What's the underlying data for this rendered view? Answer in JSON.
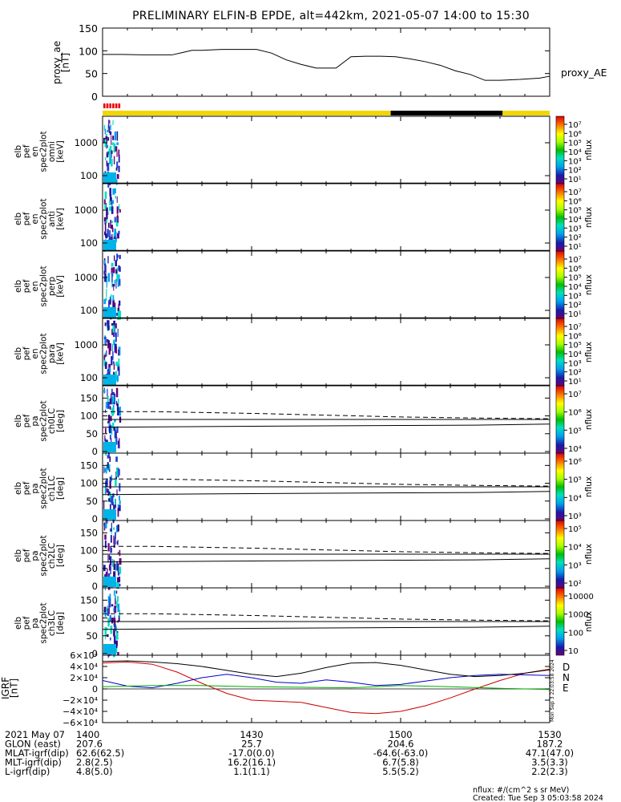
{
  "title": "PRELIMINARY ELFIN-B EPDE, alt=442km, 2021-05-07 14:00 to 15:30",
  "ae_panel": {
    "ylabel_lines": [
      "proxy_ae",
      "[nT]"
    ],
    "yticks": [
      "150",
      "100",
      "50",
      "0"
    ],
    "ylim": [
      0,
      150
    ],
    "legend": "proxy_AE"
  },
  "chart_data": [
    {
      "type": "line",
      "name": "proxy_ae",
      "ylabel": "proxy_ae [nT]",
      "ylim": [
        0,
        150
      ],
      "xlim_min": [
        0,
        90
      ],
      "x": [
        0,
        4,
        8,
        11,
        14,
        16,
        18,
        20,
        24,
        28,
        31,
        34,
        37,
        40,
        43,
        45,
        47,
        50,
        53,
        56,
        59,
        62,
        65,
        68,
        71,
        74,
        77,
        80,
        84,
        88,
        90
      ],
      "y": [
        92,
        92,
        91,
        91,
        91,
        96,
        101,
        101,
        103,
        103,
        103,
        95,
        80,
        70,
        62,
        62,
        62,
        87,
        88,
        88,
        87,
        82,
        76,
        68,
        56,
        48,
        35,
        35,
        37,
        40,
        44
      ]
    },
    {
      "type": "line",
      "name": "IGRF",
      "ylabel": "IGRF [nT]",
      "ylim": [
        -60000,
        60000
      ],
      "xlim_min": [
        0,
        90
      ],
      "series": [
        {
          "name": "D",
          "color": "#cc0000",
          "x": [
            0,
            5,
            10,
            15,
            20,
            25,
            30,
            35,
            40,
            45,
            50,
            55,
            60,
            65,
            70,
            75,
            80,
            85,
            90
          ],
          "values": [
            46000,
            48000,
            44000,
            30000,
            10000,
            -8000,
            -20000,
            -22000,
            -24000,
            -33000,
            -42000,
            -44000,
            -40000,
            -30000,
            -16000,
            0,
            15000,
            28000,
            34000
          ]
        },
        {
          "name": "N",
          "color": "#0000cc",
          "x": [
            0,
            5,
            10,
            15,
            20,
            25,
            30,
            35,
            40,
            45,
            50,
            55,
            60,
            65,
            70,
            75,
            80,
            85,
            90
          ],
          "values": [
            15000,
            5000,
            2000,
            10000,
            20000,
            26000,
            20000,
            12000,
            10000,
            16000,
            12000,
            6000,
            8000,
            14000,
            20000,
            24000,
            26000,
            25000,
            24000
          ]
        },
        {
          "name": "E",
          "color": "#00aa00",
          "x": [
            0,
            10,
            20,
            30,
            40,
            50,
            55,
            60,
            70,
            80,
            90
          ],
          "values": [
            4000,
            6000,
            6000,
            4000,
            3000,
            2000,
            4000,
            6000,
            4000,
            1000,
            -1000
          ]
        },
        {
          "name": "total",
          "color": "#000000",
          "x": [
            0,
            5,
            10,
            15,
            20,
            25,
            30,
            35,
            40,
            45,
            50,
            55,
            60,
            65,
            70,
            75,
            80,
            85,
            90
          ],
          "values": [
            49000,
            50000,
            48000,
            45000,
            40000,
            33000,
            26000,
            22000,
            28000,
            38000,
            46000,
            47000,
            42000,
            34000,
            26000,
            22000,
            24000,
            28000,
            35000
          ]
        }
      ]
    }
  ],
  "spec_panels": [
    {
      "id": "omni",
      "labels": [
        "elb",
        "pef",
        "en",
        "spec2plot",
        "omni",
        "[keV]"
      ],
      "yticks": [
        "1000",
        "100"
      ],
      "cbar_labels": [
        "10⁷",
        "10⁶",
        "10⁵",
        "10⁴",
        "10³",
        "10²",
        "10¹"
      ],
      "cbar_unit": "nflux"
    },
    {
      "id": "anti",
      "labels": [
        "elb",
        "pef",
        "en",
        "spec2plot",
        "anti",
        "[keV]"
      ],
      "yticks": [
        "1000",
        "100"
      ],
      "cbar_labels": [
        "10⁷",
        "10⁶",
        "10⁵",
        "10⁴",
        "10³",
        "10²",
        "10¹"
      ],
      "cbar_unit": "nflux"
    },
    {
      "id": "perp",
      "labels": [
        "elb",
        "pef",
        "en",
        "spec2plot",
        "perp",
        "[keV]"
      ],
      "yticks": [
        "1000",
        "100"
      ],
      "cbar_labels": [
        "10⁷",
        "10⁶",
        "10⁵",
        "10⁴",
        "10³",
        "10²",
        "10¹"
      ],
      "cbar_unit": "nflux"
    },
    {
      "id": "para",
      "labels": [
        "elb",
        "pef",
        "en",
        "spec2plot",
        "para",
        "[keV]"
      ],
      "yticks": [
        "1000",
        "100"
      ],
      "cbar_labels": [
        "10⁷",
        "10⁶",
        "10⁵",
        "10⁴",
        "10³",
        "10²",
        "10¹"
      ],
      "cbar_unit": "nflux"
    }
  ],
  "pa_panels": [
    {
      "id": "ch0LC",
      "labels": [
        "elb",
        "pef",
        "pa",
        "spec2plot",
        "ch0LC",
        "[deg]"
      ],
      "yticks": [
        "150",
        "100",
        "50",
        "0"
      ],
      "cbar_labels": [
        "10⁷",
        "10⁶",
        "10⁵",
        "10⁴"
      ],
      "cbar_unit": "nflux"
    },
    {
      "id": "ch1LC",
      "labels": [
        "elb",
        "pef",
        "pa",
        "spec2plot",
        "ch1LC",
        "[deg]"
      ],
      "yticks": [
        "150",
        "100",
        "50",
        "0"
      ],
      "cbar_labels": [
        "10⁶",
        "10⁵",
        "10⁴",
        "10³"
      ],
      "cbar_unit": "nflux"
    },
    {
      "id": "ch2LC",
      "labels": [
        "elb",
        "pef",
        "pa",
        "spec2plot",
        "ch2LC",
        "[deg]"
      ],
      "yticks": [
        "150",
        "100",
        "50",
        "0"
      ],
      "cbar_labels": [
        "10⁵",
        "10⁴",
        "10³",
        "10²"
      ],
      "cbar_unit": "nflux"
    },
    {
      "id": "ch3LC",
      "labels": [
        "elb",
        "pef",
        "pa",
        "spec2plot",
        "ch3LC",
        "[deg]"
      ],
      "yticks": [
        "150",
        "100",
        "50",
        "0"
      ],
      "cbar_labels": [
        "10000",
        "1000",
        "100",
        "10"
      ],
      "cbar_unit": "nflux"
    }
  ],
  "igrf_panel": {
    "ylabel_lines": [
      "IGRF",
      "[nT]"
    ],
    "yticks": [
      "6×10⁴",
      "4×10⁴",
      "2×10⁴",
      "0",
      "−2×10⁴",
      "−4×10⁴",
      "−6×10⁴"
    ],
    "legend": [
      "D",
      "N",
      "E"
    ],
    "side_stamp": "Mon Sep  3 22:03:58 2024"
  },
  "time_axis": {
    "ticks": [
      "1400",
      "1430",
      "1500",
      "1530"
    ],
    "rows": [
      {
        "label": "2021 May 07",
        "values": [
          "1400",
          "1430",
          "1500",
          "1530"
        ]
      },
      {
        "label": "GLON (east)",
        "values": [
          "207.6",
          "25.7",
          "204.6",
          "187.2"
        ]
      },
      {
        "label": "MLAT-igrf(dip)",
        "values": [
          "62.6(62.5)",
          "-17.0(0.0)",
          "-64.6(-63.0)",
          "47.1(47.0)"
        ]
      },
      {
        "label": "MLT-igrf(dip)",
        "values": [
          "2.8(2.5)",
          "16.2(16.1)",
          "6.7(5.8)",
          "3.5(3.3)"
        ]
      },
      {
        "label": "L-igrf(dip)",
        "values": [
          "4.8(5.0)",
          "1.1(1.1)",
          "5.5(5.2)",
          "2.2(2.3)"
        ]
      }
    ]
  },
  "footer": {
    "units": "nflux: #/(cm^2 s sr MeV)",
    "created": "Created: Tue Sep  3 05:03:58 2024"
  },
  "colors": {
    "sun_bar": "#f2d600",
    "eclipse_bar": "#000000",
    "science_zone": "#ee0000",
    "D": "#cc0000",
    "N": "#0000cc",
    "E": "#00aa00"
  }
}
